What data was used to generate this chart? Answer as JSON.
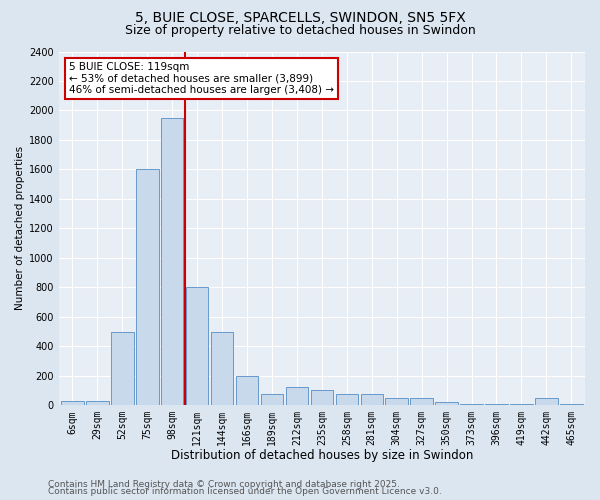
{
  "title1": "5, BUIE CLOSE, SPARCELLS, SWINDON, SN5 5FX",
  "title2": "Size of property relative to detached houses in Swindon",
  "xlabel": "Distribution of detached houses by size in Swindon",
  "ylabel": "Number of detached properties",
  "bar_labels": [
    "6sqm",
    "29sqm",
    "52sqm",
    "75sqm",
    "98sqm",
    "121sqm",
    "144sqm",
    "166sqm",
    "189sqm",
    "212sqm",
    "235sqm",
    "258sqm",
    "281sqm",
    "304sqm",
    "327sqm",
    "350sqm",
    "373sqm",
    "396sqm",
    "419sqm",
    "442sqm",
    "465sqm"
  ],
  "bar_values": [
    30,
    30,
    500,
    1600,
    1950,
    800,
    500,
    200,
    75,
    125,
    100,
    75,
    75,
    50,
    50,
    25,
    10,
    5,
    5,
    50,
    5
  ],
  "bar_color": "#c9d9ec",
  "bar_edgecolor": "#6699cc",
  "vline_color": "#cc0000",
  "vline_x_index": 4.5,
  "annotation_text": "5 BUIE CLOSE: 119sqm\n← 53% of detached houses are smaller (3,899)\n46% of semi-detached houses are larger (3,408) →",
  "annotation_box_facecolor": "#ffffff",
  "annotation_box_edgecolor": "#cc0000",
  "ylim": [
    0,
    2400
  ],
  "yticks": [
    0,
    200,
    400,
    600,
    800,
    1000,
    1200,
    1400,
    1600,
    1800,
    2000,
    2200,
    2400
  ],
  "bg_color": "#dce6f1",
  "plot_bg": "#e8eef5",
  "footer1": "Contains HM Land Registry data © Crown copyright and database right 2025.",
  "footer2": "Contains public sector information licensed under the Open Government Licence v3.0.",
  "title1_fontsize": 10,
  "title2_fontsize": 9,
  "xlabel_fontsize": 8.5,
  "ylabel_fontsize": 7.5,
  "tick_fontsize": 7,
  "footer_fontsize": 6.5,
  "ann_fontsize": 7.5
}
